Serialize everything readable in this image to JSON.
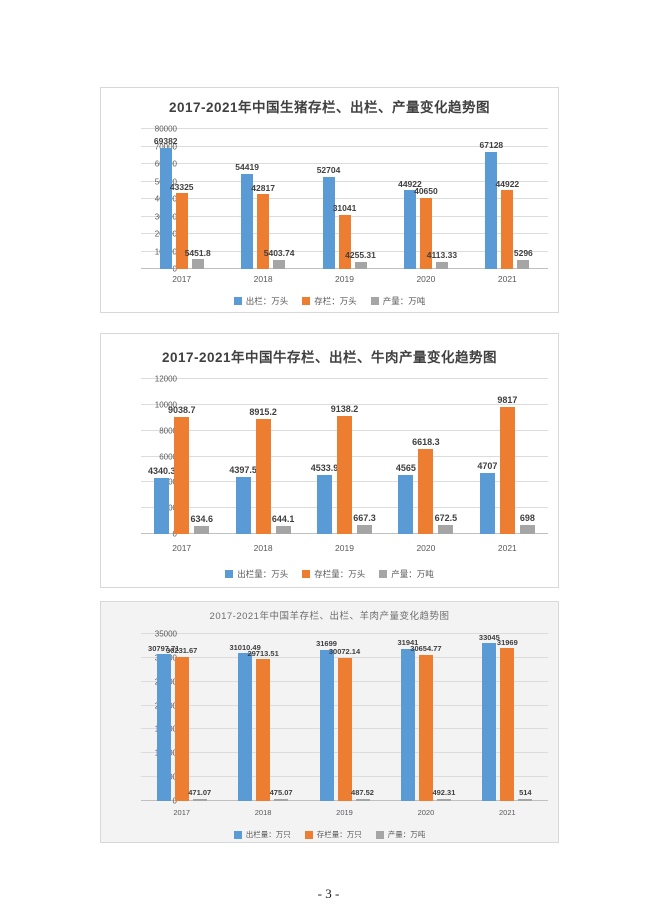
{
  "page": {
    "number_label": "- 3 -"
  },
  "colors": {
    "series_blue": "#5B9BD5",
    "series_orange": "#ED7D31",
    "series_gray": "#A5A5A5",
    "gridline": "#DCDCDC",
    "axis_text": "#595959",
    "title_dark": "#404040",
    "title_gray": "#6E6E6E"
  },
  "chart_data": [
    {
      "type": "bar",
      "title": "2017-2021年中国生猪存栏、出栏、产量变化趋势图",
      "categories": [
        "2017",
        "2018",
        "2019",
        "2020",
        "2021"
      ],
      "series": [
        {
          "name": "出栏：万头",
          "color": "#5B9BD5",
          "values": [
            69382,
            54419,
            52704,
            44922,
            67128
          ]
        },
        {
          "name": "存栏：万头",
          "color": "#ED7D31",
          "values": [
            43325,
            42817,
            31041,
            40650,
            44922
          ]
        },
        {
          "name": "产量：万吨",
          "color": "#A5A5A5",
          "values": [
            5451.8,
            5403.74,
            4255.31,
            4113.33,
            5296
          ]
        }
      ],
      "ylim": [
        0,
        80000
      ],
      "ytick_step": 10000,
      "grid": true,
      "legend_position": "bottom"
    },
    {
      "type": "bar",
      "title": "2017-2021年中国牛存栏、出栏、牛肉产量变化趋势图",
      "categories": [
        "2017",
        "2018",
        "2019",
        "2020",
        "2021"
      ],
      "series": [
        {
          "name": "出栏量：万头",
          "color": "#5B9BD5",
          "values": [
            4340.3,
            4397.5,
            4533.9,
            4565,
            4707
          ]
        },
        {
          "name": "存栏量：万头",
          "color": "#ED7D31",
          "values": [
            9038.7,
            8915.2,
            9138.2,
            6618.3,
            9817
          ]
        },
        {
          "name": "产量：万吨",
          "color": "#A5A5A5",
          "values": [
            634.6,
            644.1,
            667.3,
            672.5,
            698
          ]
        }
      ],
      "ylim": [
        0,
        12000
      ],
      "ytick_step": 2000,
      "grid": true,
      "legend_position": "bottom"
    },
    {
      "type": "bar",
      "title": "2017-2021年中国羊存栏、出栏、羊肉产量变化趋势图",
      "categories": [
        "2017",
        "2018",
        "2019",
        "2020",
        "2021"
      ],
      "series": [
        {
          "name": "出栏量：万只",
          "color": "#5B9BD5",
          "values": [
            30797.71,
            31010.49,
            31699,
            31941,
            33045
          ]
        },
        {
          "name": "存栏量：万只",
          "color": "#ED7D31",
          "values": [
            30231.67,
            29713.51,
            30072.14,
            30654.77,
            31969
          ]
        },
        {
          "name": "产量：万吨",
          "color": "#A5A5A5",
          "values": [
            471.07,
            475.07,
            487.52,
            492.31,
            514
          ]
        }
      ],
      "ylim": [
        0,
        35000
      ],
      "ytick_step": 5000,
      "grid": true,
      "legend_position": "bottom"
    }
  ]
}
